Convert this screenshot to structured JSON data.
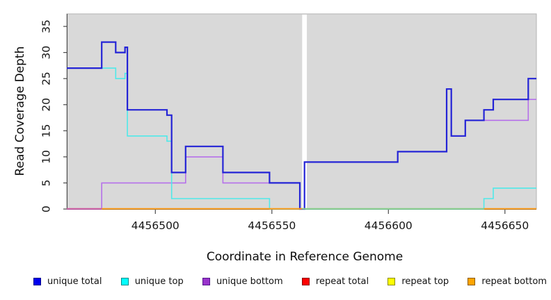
{
  "chart_data": {
    "type": "line",
    "subtype": "step-coverage-plot",
    "title": "",
    "xlabel": "Coordinate in Reference Genome",
    "ylabel": "Read Coverage Depth",
    "xlim": [
      4456462,
      4456663.5
    ],
    "ylim": [
      0,
      37.4
    ],
    "x_ticks": [
      4456500,
      4456550,
      4456600,
      4456650
    ],
    "y_ticks": [
      0,
      5,
      10,
      15,
      20,
      25,
      30,
      35
    ],
    "grid": "off",
    "plot_background": "#d9d9d9",
    "gap_region": {
      "from": 4456563,
      "to": 4456565,
      "color": "#ffffff"
    },
    "series": [
      {
        "name": "unique total",
        "color": "#2424d6",
        "width": 2.2,
        "steps": [
          [
            4456462,
            27
          ],
          [
            4456477,
            32
          ],
          [
            4456483,
            30
          ],
          [
            4456487,
            31
          ],
          [
            4456488,
            19
          ],
          [
            4456505,
            18
          ],
          [
            4456507,
            7
          ],
          [
            4456513,
            12
          ],
          [
            4456529,
            7
          ],
          [
            4456549,
            5
          ],
          [
            4456562,
            0
          ],
          [
            4456564,
            9
          ],
          [
            4456604,
            11
          ],
          [
            4456625,
            23
          ],
          [
            4456627,
            14
          ],
          [
            4456633,
            17
          ],
          [
            4456641,
            19
          ],
          [
            4456645,
            21
          ],
          [
            4456660,
            25
          ]
        ]
      },
      {
        "name": "unique top",
        "color": "#4fe9e9",
        "width": 1.6,
        "steps": [
          [
            4456462,
            27
          ],
          [
            4456483,
            25
          ],
          [
            4456487,
            26
          ],
          [
            4456488,
            14
          ],
          [
            4456505,
            13
          ],
          [
            4456507,
            2
          ],
          [
            4456549,
            0
          ],
          [
            4456641,
            2
          ],
          [
            4456645,
            4
          ]
        ]
      },
      {
        "name": "unique bottom",
        "color": "#b570ea",
        "width": 1.6,
        "steps": [
          [
            4456462,
            0
          ],
          [
            4456477,
            5
          ],
          [
            4456513,
            10
          ],
          [
            4456529,
            5
          ],
          [
            4456562,
            0
          ],
          [
            4456564,
            9
          ],
          [
            4456604,
            11
          ],
          [
            4456625,
            23
          ],
          [
            4456627,
            14
          ],
          [
            4456633,
            17
          ],
          [
            4456660,
            21
          ]
        ]
      },
      {
        "name": "repeat total",
        "color": "#ff0000",
        "width": 1.6,
        "steps": [
          [
            4456462,
            0
          ]
        ]
      },
      {
        "name": "repeat top",
        "color": "#ffff00",
        "width": 1.6,
        "steps": [
          [
            4456462,
            0
          ]
        ]
      },
      {
        "name": "repeat bottom",
        "color": "#ff9e1b",
        "width": 2,
        "steps": [
          [
            4456462,
            0
          ]
        ]
      }
    ],
    "baseline_segments": [
      {
        "from": 4456462,
        "to": 4456477,
        "color": "#cf5fa3"
      },
      {
        "from": 4456477,
        "to": 4456563,
        "color": "#ff9e1b"
      },
      {
        "from": 4456563,
        "to": 4456641,
        "color": "#8ed08e"
      },
      {
        "from": 4456641,
        "to": 4456663.5,
        "color": "#ff9e1b"
      }
    ],
    "legend": [
      {
        "label": "unique total",
        "fill": "#0000ee",
        "border": "#00008b"
      },
      {
        "label": "unique top",
        "fill": "#00ffff",
        "border": "#008b8b"
      },
      {
        "label": "unique bottom",
        "fill": "#9933cc",
        "border": "#55188b"
      },
      {
        "label": "repeat total",
        "fill": "#ff0000",
        "border": "#8b0000"
      },
      {
        "label": "repeat top",
        "fill": "#ffff00",
        "border": "#8b8b00"
      },
      {
        "label": "repeat bottom",
        "fill": "#ffa500",
        "border": "#8b5a00"
      }
    ],
    "legend_position": "bottom"
  }
}
